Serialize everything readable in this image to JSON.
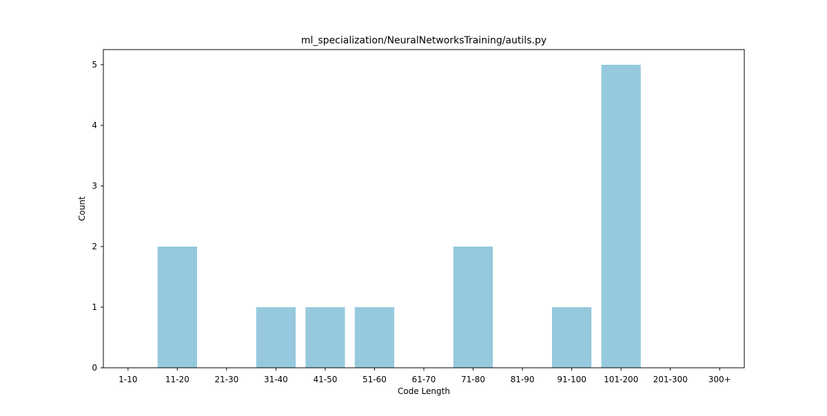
{
  "chart_data": {
    "type": "bar",
    "title": "ml_specialization/NeuralNetworksTraining/autils.py",
    "xlabel": "Code Length",
    "ylabel": "Count",
    "categories": [
      "1-10",
      "11-20",
      "21-30",
      "31-40",
      "41-50",
      "51-60",
      "61-70",
      "71-80",
      "81-90",
      "91-100",
      "101-200",
      "201-300",
      "300+"
    ],
    "values": [
      0,
      2,
      0,
      1,
      1,
      1,
      0,
      2,
      0,
      1,
      5,
      0,
      0
    ],
    "ylim": [
      0,
      5.25
    ],
    "yticks": [
      "0",
      "1",
      "2",
      "3",
      "4",
      "5"
    ],
    "grid": false,
    "bar_color": "#96c9dd"
  }
}
